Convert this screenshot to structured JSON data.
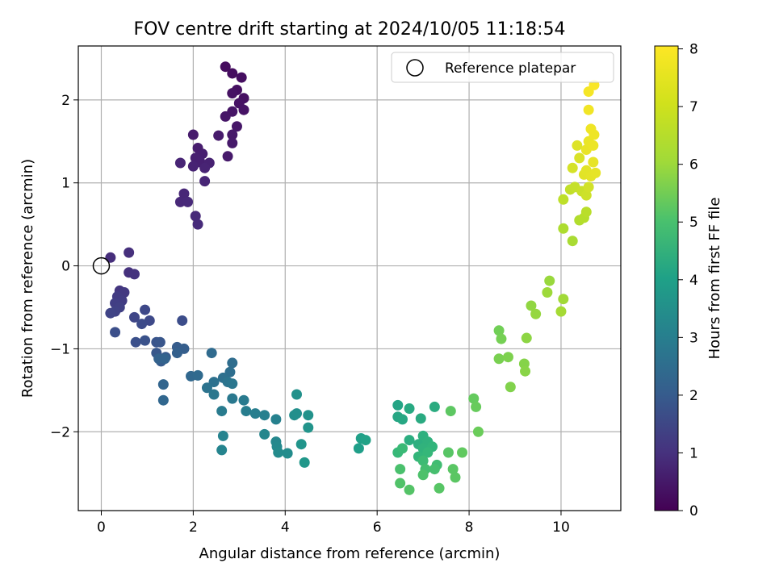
{
  "chart_data": {
    "type": "scatter",
    "title": "FOV centre drift starting at 2024/10/05 11:18:54",
    "xlabel": "Angular distance from reference (arcmin)",
    "ylabel": "Rotation from reference (arcmin)",
    "xlim": [
      -0.5,
      11.3
    ],
    "ylim": [
      -2.95,
      2.65
    ],
    "xticks": [
      0,
      2,
      4,
      6,
      8,
      10
    ],
    "yticks": [
      -2,
      -1,
      0,
      1,
      2
    ],
    "grid": true,
    "legend": {
      "placement": "top-right",
      "entries": [
        "Reference platepar"
      ]
    },
    "colorbar": {
      "label": "Hours from first FF file",
      "ticks": [
        0,
        1,
        2,
        3,
        4,
        5,
        6,
        7,
        8
      ],
      "range": [
        0,
        8.05
      ],
      "colormap": "viridis"
    },
    "reference_point": {
      "x": 0,
      "y": 0,
      "label": "Reference platepar"
    },
    "points": [
      [
        2.7,
        2.4,
        0.25
      ],
      [
        2.85,
        2.32,
        0.27
      ],
      [
        3.05,
        2.27,
        0.3
      ],
      [
        2.95,
        2.12,
        0.33
      ],
      [
        3.1,
        2.02,
        0.35
      ],
      [
        2.85,
        2.08,
        0.38
      ],
      [
        3.0,
        1.96,
        0.4
      ],
      [
        3.1,
        1.88,
        0.42
      ],
      [
        2.85,
        1.86,
        0.45
      ],
      [
        2.7,
        1.8,
        0.48
      ],
      [
        2.95,
        1.68,
        0.5
      ],
      [
        2.85,
        1.58,
        0.52
      ],
      [
        2.85,
        1.48,
        0.55
      ],
      [
        2.75,
        1.32,
        0.58
      ],
      [
        2.55,
        1.57,
        0.6
      ],
      [
        2.0,
        1.58,
        0.62
      ],
      [
        2.1,
        1.42,
        0.65
      ],
      [
        2.2,
        1.35,
        0.67
      ],
      [
        2.05,
        1.3,
        0.7
      ],
      [
        2.15,
        1.25,
        0.72
      ],
      [
        2.35,
        1.24,
        0.75
      ],
      [
        2.0,
        1.2,
        0.78
      ],
      [
        2.25,
        1.18,
        0.8
      ],
      [
        1.72,
        1.24,
        0.82
      ],
      [
        2.25,
        1.02,
        0.85
      ],
      [
        1.8,
        0.87,
        0.88
      ],
      [
        1.72,
        0.77,
        0.9
      ],
      [
        1.88,
        0.77,
        0.93
      ],
      [
        2.05,
        0.6,
        0.95
      ],
      [
        2.1,
        0.5,
        0.98
      ],
      [
        0.2,
        0.1,
        1.05
      ],
      [
        0.6,
        0.16,
        1.1
      ],
      [
        0.6,
        -0.08,
        1.15
      ],
      [
        0.72,
        -0.1,
        1.2
      ],
      [
        0.4,
        -0.3,
        1.28
      ],
      [
        0.5,
        -0.32,
        1.35
      ],
      [
        0.35,
        -0.37,
        1.4
      ],
      [
        0.45,
        -0.42,
        1.45
      ],
      [
        0.3,
        -0.45,
        1.5
      ],
      [
        0.4,
        -0.5,
        1.55
      ],
      [
        0.3,
        -0.55,
        1.6
      ],
      [
        0.2,
        -0.57,
        1.65
      ],
      [
        0.72,
        -0.62,
        1.7
      ],
      [
        0.95,
        -0.53,
        1.75
      ],
      [
        1.05,
        -0.66,
        1.8
      ],
      [
        0.88,
        -0.7,
        1.85
      ],
      [
        1.76,
        -0.66,
        1.9
      ],
      [
        0.3,
        -0.8,
        1.95
      ],
      [
        0.75,
        -0.92,
        2.0
      ],
      [
        0.95,
        -0.9,
        2.05
      ],
      [
        1.2,
        -0.92,
        2.1
      ],
      [
        1.28,
        -0.92,
        2.15
      ],
      [
        1.2,
        -1.05,
        2.2
      ],
      [
        1.4,
        -1.1,
        2.25
      ],
      [
        1.3,
        -1.15,
        2.3
      ],
      [
        1.65,
        -0.98,
        2.35
      ],
      [
        1.8,
        -1.0,
        2.4
      ],
      [
        1.65,
        -1.05,
        2.45
      ],
      [
        1.25,
        -1.12,
        2.5
      ],
      [
        1.38,
        -1.12,
        2.55
      ],
      [
        1.35,
        -1.43,
        2.6
      ],
      [
        1.35,
        -1.62,
        2.65
      ],
      [
        1.95,
        -1.33,
        2.7
      ],
      [
        2.1,
        -1.32,
        2.75
      ],
      [
        2.4,
        -1.05,
        2.8
      ],
      [
        2.85,
        -1.17,
        2.85
      ],
      [
        2.8,
        -1.28,
        2.9
      ],
      [
        2.65,
        -1.35,
        2.95
      ],
      [
        2.45,
        -1.4,
        3.0
      ],
      [
        2.3,
        -1.47,
        3.05
      ],
      [
        2.75,
        -1.4,
        3.1
      ],
      [
        2.85,
        -1.42,
        3.15
      ],
      [
        2.45,
        -1.55,
        3.2
      ],
      [
        2.85,
        -1.6,
        3.25
      ],
      [
        3.1,
        -1.62,
        3.3
      ],
      [
        2.62,
        -1.75,
        3.35
      ],
      [
        3.15,
        -1.75,
        3.4
      ],
      [
        3.35,
        -1.78,
        3.45
      ],
      [
        3.55,
        -1.8,
        3.5
      ],
      [
        3.8,
        -1.85,
        3.55
      ],
      [
        2.65,
        -2.05,
        3.6
      ],
      [
        2.62,
        -2.22,
        3.65
      ],
      [
        3.55,
        -2.03,
        3.7
      ],
      [
        3.8,
        -2.12,
        3.75
      ],
      [
        3.82,
        -2.18,
        3.8
      ],
      [
        3.85,
        -2.25,
        3.85
      ],
      [
        4.05,
        -2.26,
        3.9
      ],
      [
        4.2,
        -1.8,
        3.95
      ],
      [
        4.25,
        -1.78,
        4.0
      ],
      [
        4.25,
        -1.55,
        4.05
      ],
      [
        4.5,
        -1.8,
        4.1
      ],
      [
        4.5,
        -1.95,
        4.15
      ],
      [
        4.35,
        -2.15,
        4.2
      ],
      [
        4.42,
        -2.37,
        4.25
      ],
      [
        5.6,
        -2.2,
        4.5
      ],
      [
        5.65,
        -2.08,
        4.55
      ],
      [
        5.75,
        -2.1,
        4.6
      ],
      [
        6.45,
        -1.68,
        4.7
      ],
      [
        6.45,
        -1.82,
        4.75
      ],
      [
        6.55,
        -1.85,
        4.8
      ],
      [
        6.7,
        -1.72,
        4.85
      ],
      [
        6.95,
        -1.84,
        4.9
      ],
      [
        7.25,
        -1.7,
        4.95
      ],
      [
        6.7,
        -2.1,
        5.0
      ],
      [
        6.9,
        -2.15,
        5.05
      ],
      [
        7.0,
        -2.05,
        5.1
      ],
      [
        7.1,
        -2.12,
        5.15
      ],
      [
        7.0,
        -2.2,
        5.2
      ],
      [
        7.2,
        -2.18,
        5.25
      ],
      [
        6.9,
        -2.3,
        5.3
      ],
      [
        7.1,
        -2.25,
        5.35
      ],
      [
        6.45,
        -2.25,
        5.4
      ],
      [
        6.55,
        -2.2,
        5.45
      ],
      [
        7.0,
        -2.35,
        5.5
      ],
      [
        7.3,
        -2.4,
        5.55
      ],
      [
        7.05,
        -2.45,
        5.6
      ],
      [
        7.25,
        -2.45,
        5.65
      ],
      [
        6.5,
        -2.45,
        5.7
      ],
      [
        7.0,
        -2.52,
        5.75
      ],
      [
        6.5,
        -2.62,
        5.8
      ],
      [
        6.7,
        -2.7,
        5.85
      ],
      [
        7.35,
        -2.68,
        5.9
      ],
      [
        7.55,
        -2.25,
        5.92
      ],
      [
        7.65,
        -2.45,
        5.94
      ],
      [
        7.7,
        -2.55,
        5.96
      ],
      [
        7.6,
        -1.75,
        6.0
      ],
      [
        7.85,
        -2.25,
        6.05
      ],
      [
        8.1,
        -1.6,
        6.1
      ],
      [
        8.15,
        -1.7,
        6.15
      ],
      [
        8.2,
        -2.0,
        6.2
      ],
      [
        8.65,
        -0.78,
        6.3
      ],
      [
        8.7,
        -0.88,
        6.35
      ],
      [
        8.65,
        -1.12,
        6.4
      ],
      [
        8.85,
        -1.1,
        6.45
      ],
      [
        8.9,
        -1.46,
        6.5
      ],
      [
        9.2,
        -1.18,
        6.55
      ],
      [
        9.22,
        -1.27,
        6.6
      ],
      [
        9.25,
        -0.87,
        6.65
      ],
      [
        9.35,
        -0.48,
        6.7
      ],
      [
        9.45,
        -0.58,
        6.75
      ],
      [
        9.75,
        -0.18,
        6.8
      ],
      [
        9.7,
        -0.32,
        6.85
      ],
      [
        10.05,
        -0.4,
        6.9
      ],
      [
        10.0,
        -0.55,
        6.95
      ],
      [
        10.25,
        0.3,
        7.0
      ],
      [
        10.05,
        0.45,
        7.05
      ],
      [
        10.4,
        0.55,
        7.1
      ],
      [
        10.5,
        0.58,
        7.15
      ],
      [
        10.55,
        0.65,
        7.2
      ],
      [
        10.05,
        0.8,
        7.25
      ],
      [
        10.2,
        0.92,
        7.3
      ],
      [
        10.3,
        0.95,
        7.35
      ],
      [
        10.45,
        0.9,
        7.4
      ],
      [
        10.55,
        0.85,
        7.45
      ],
      [
        10.6,
        0.95,
        7.5
      ],
      [
        10.25,
        1.18,
        7.55
      ],
      [
        10.4,
        1.3,
        7.6
      ],
      [
        10.35,
        1.45,
        7.65
      ],
      [
        10.5,
        1.1,
        7.7
      ],
      [
        10.55,
        1.15,
        7.72
      ],
      [
        10.65,
        1.08,
        7.74
      ],
      [
        10.75,
        1.12,
        7.76
      ],
      [
        10.7,
        1.25,
        7.78
      ],
      [
        10.55,
        1.4,
        7.8
      ],
      [
        10.6,
        1.5,
        7.82
      ],
      [
        10.7,
        1.45,
        7.84
      ],
      [
        10.72,
        1.58,
        7.86
      ],
      [
        10.65,
        1.65,
        7.88
      ],
      [
        10.6,
        1.88,
        7.9
      ],
      [
        10.6,
        2.1,
        7.95
      ],
      [
        10.72,
        2.18,
        8.0
      ]
    ]
  }
}
